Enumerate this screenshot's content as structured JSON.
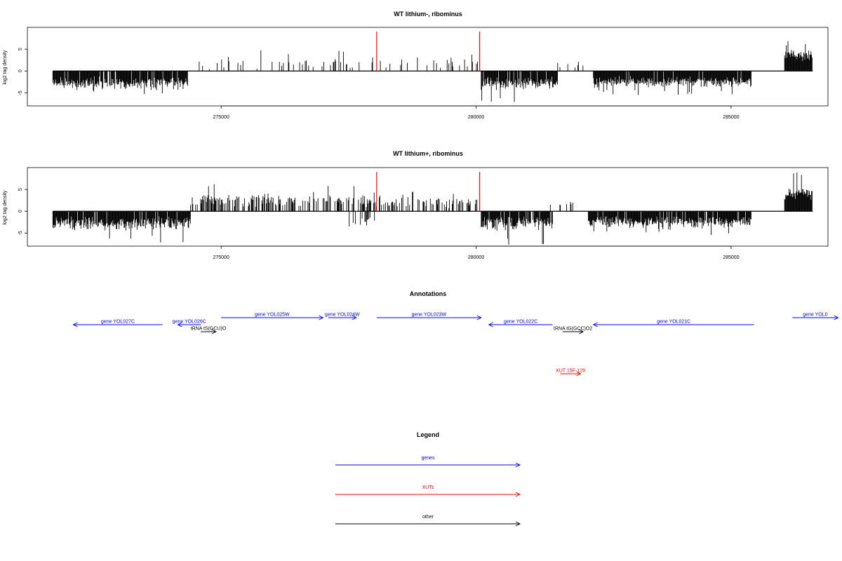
{
  "chart_data": [
    {
      "type": "bar",
      "title": "WT lithium-, ribominus",
      "ylabel": "log2 tag density",
      "xlim": [
        271200,
        286900
      ],
      "ylim": [
        -8,
        10
      ],
      "yticks": [
        -5,
        0,
        5
      ],
      "xticks": [
        275000,
        280000,
        285000
      ],
      "x_range": [
        271700,
        286600
      ],
      "red_lines": [
        278050,
        280070
      ],
      "red_line_height": 9,
      "segments": [
        {
          "from": 271700,
          "to": 274350,
          "sign": -1,
          "mean": 2.8,
          "spread": 1.2,
          "density": 0.9,
          "max": 5.6
        },
        {
          "from": 274350,
          "to": 274800,
          "sign": 1,
          "mean": 0.8,
          "spread": 1.0,
          "density": 0.05,
          "max": 5
        },
        {
          "from": 274800,
          "to": 278050,
          "sign": 1,
          "mean": 2.0,
          "spread": 1.2,
          "density": 0.12,
          "max": 5
        },
        {
          "from": 278100,
          "to": 280050,
          "sign": 1,
          "mean": 2.0,
          "spread": 1.0,
          "density": 0.12,
          "max": 4
        },
        {
          "from": 280100,
          "to": 281600,
          "sign": -1,
          "mean": 2.8,
          "spread": 1.3,
          "density": 0.9,
          "max": 7.5
        },
        {
          "from": 281600,
          "to": 282100,
          "sign": 1,
          "mean": 1.5,
          "spread": 1.0,
          "density": 0.15,
          "max": 3
        },
        {
          "from": 282300,
          "to": 285400,
          "sign": -1,
          "mean": 2.5,
          "spread": 1.0,
          "density": 0.95,
          "max": 5.5
        },
        {
          "from": 286050,
          "to": 286600,
          "sign": 1,
          "mean": 3.6,
          "spread": 1.0,
          "density": 1.0,
          "max": 7
        }
      ]
    },
    {
      "type": "bar",
      "title": "WT lithium+, ribominus",
      "ylabel": "log2 tag density",
      "xlim": [
        271200,
        286900
      ],
      "ylim": [
        -8,
        10
      ],
      "yticks": [
        -5,
        0,
        5
      ],
      "xticks": [
        275000,
        280000,
        285000
      ],
      "x_range": [
        271700,
        286600
      ],
      "red_lines": [
        278050,
        280070
      ],
      "red_line_height": 9,
      "segments": [
        {
          "from": 271700,
          "to": 274400,
          "sign": -1,
          "mean": 2.8,
          "spread": 1.3,
          "density": 0.95,
          "max": 7.3
        },
        {
          "from": 274400,
          "to": 278050,
          "sign": 1,
          "mean": 2.6,
          "spread": 1.4,
          "density": 0.45,
          "max": 7.5
        },
        {
          "from": 277500,
          "to": 278100,
          "sign": -1,
          "mean": 2.0,
          "spread": 1.0,
          "density": 0.4,
          "max": 4
        },
        {
          "from": 278100,
          "to": 280050,
          "sign": 1,
          "mean": 2.0,
          "spread": 1.0,
          "density": 0.35,
          "max": 4.5
        },
        {
          "from": 280100,
          "to": 281500,
          "sign": -1,
          "mean": 2.8,
          "spread": 1.3,
          "density": 0.9,
          "max": 8
        },
        {
          "from": 281400,
          "to": 282000,
          "sign": 1,
          "mean": 1.3,
          "spread": 0.8,
          "density": 0.2,
          "max": 3
        },
        {
          "from": 282200,
          "to": 285400,
          "sign": -1,
          "mean": 2.6,
          "spread": 1.1,
          "density": 0.95,
          "max": 5.5
        },
        {
          "from": 286050,
          "to": 286600,
          "sign": 1,
          "mean": 4.0,
          "spread": 1.2,
          "density": 1.0,
          "max": 9
        }
      ]
    }
  ],
  "annotations": {
    "title": "Annotations",
    "items": [
      {
        "label": "gene YOL027C",
        "start": 272100,
        "end": 273850,
        "row": 0,
        "color": "#0000ff"
      },
      {
        "label": "gene YOL026C",
        "start": 274150,
        "end": 274600,
        "row": 0,
        "color": "#0000ff"
      },
      {
        "label": "tRNA tS(GCU)O",
        "start": 274600,
        "end": 274900,
        "row": 1,
        "color": "#000000"
      },
      {
        "label": "gene YOL025W",
        "start": 275000,
        "end": 277000,
        "row": -1,
        "color": "#0000ff"
      },
      {
        "label": "gene YOL024W",
        "start": 277100,
        "end": 277650,
        "row": -1,
        "color": "#0000ff"
      },
      {
        "label": "gene YOL023W",
        "start": 278050,
        "end": 280100,
        "row": -1,
        "color": "#0000ff"
      },
      {
        "label": "gene YOL022C",
        "start": 280250,
        "end": 281500,
        "row": 0,
        "color": "#0000ff"
      },
      {
        "label": "tRNA tG(GCC)O2",
        "start": 281700,
        "end": 282100,
        "row": 1,
        "color": "#000000"
      },
      {
        "label": "gene YOL021C",
        "start": 282300,
        "end": 285450,
        "row": 0,
        "color": "#0000ff"
      },
      {
        "label": "gene YOL0",
        "start": 286200,
        "end": 287100,
        "row": -1,
        "color": "#0000ff"
      },
      {
        "label": "XUT 15F-129",
        "start": 281650,
        "end": 282050,
        "row": 7,
        "color": "#ff0000"
      }
    ]
  },
  "legend": {
    "title": "Legend",
    "items": [
      {
        "label": "genes",
        "color": "#0000ff"
      },
      {
        "label": "XUTs",
        "color": "#ff0000"
      },
      {
        "label": "other",
        "color": "#000000"
      }
    ]
  }
}
